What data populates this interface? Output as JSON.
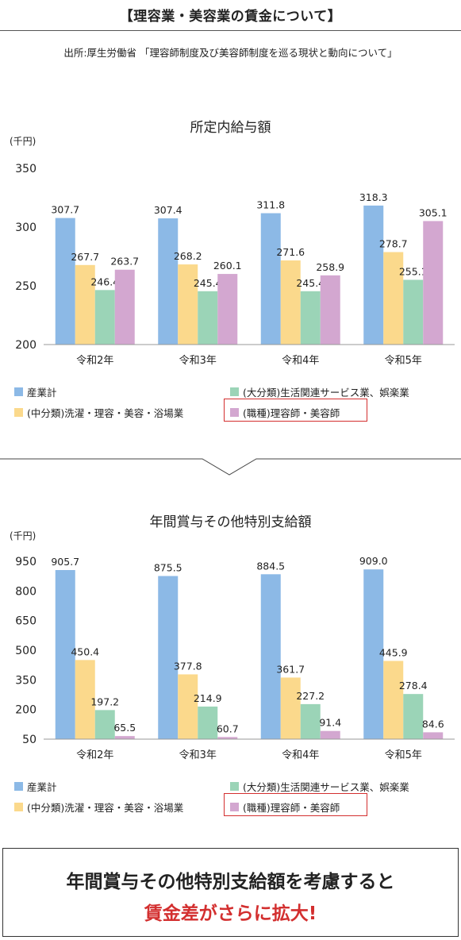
{
  "header": {
    "title": "【理容業・美容業の賃金について】",
    "source": "出所:厚生労働省 「理容師制度及び美容師制度を巡る現状と動向について」"
  },
  "colors": {
    "industry_total": "#8cb9e6",
    "laundry_barber": "#fbd98c",
    "lifestyle_services": "#9bd4b7",
    "barber_beautician": "#d3a7d0",
    "highlight": "#d32f2f"
  },
  "legend": {
    "items": [
      {
        "key": "industry_total",
        "label": "産業計"
      },
      {
        "key": "lifestyle_services",
        "label": "(大分類)生活関連サービス業、娯楽業"
      },
      {
        "key": "laundry_barber",
        "label": "(中分類)洗濯・理容・美容・浴場業"
      },
      {
        "key": "barber_beautician",
        "label": "(職種)理容師・美容師"
      }
    ]
  },
  "chart_data": [
    {
      "type": "bar",
      "title": "所定内給与額",
      "unit": "(千円)",
      "categories": [
        "令和2年",
        "令和3年",
        "令和4年",
        "令和5年"
      ],
      "ylim": [
        200,
        350
      ],
      "yticks": [
        200,
        250,
        300,
        350
      ],
      "series": [
        {
          "key": "industry_total",
          "name": "産業計",
          "values": [
            307.7,
            307.4,
            311.8,
            318.3
          ]
        },
        {
          "key": "laundry_barber",
          "name": "(中分類)洗濯・理容・美容・浴場業",
          "values": [
            267.7,
            268.2,
            271.6,
            278.7
          ]
        },
        {
          "key": "lifestyle_services",
          "name": "(大分類)生活関連サービス業、娯楽業",
          "values": [
            246.4,
            245.4,
            245.4,
            255.1
          ]
        },
        {
          "key": "barber_beautician",
          "name": "(職種)理容師・美容師",
          "values": [
            263.7,
            260.1,
            258.9,
            305.1
          ]
        }
      ],
      "grid": false,
      "legend_position": "bottom"
    },
    {
      "type": "bar",
      "title": "年間賞与その他特別支給額",
      "unit": "(千円)",
      "categories": [
        "令和2年",
        "令和3年",
        "令和4年",
        "令和5年"
      ],
      "ylim": [
        50,
        950
      ],
      "yticks": [
        50,
        200,
        350,
        500,
        650,
        800,
        950
      ],
      "series": [
        {
          "key": "industry_total",
          "name": "産業計",
          "values": [
            905.7,
            875.5,
            884.5,
            909.0
          ]
        },
        {
          "key": "laundry_barber",
          "name": "(中分類)洗濯・理容・美容・浴場業",
          "values": [
            450.4,
            377.8,
            361.7,
            445.9
          ]
        },
        {
          "key": "lifestyle_services",
          "name": "(大分類)生活関連サービス業、娯楽業",
          "values": [
            197.2,
            214.9,
            227.2,
            278.4
          ]
        },
        {
          "key": "barber_beautician",
          "name": "(職種)理容師・美容師",
          "values": [
            65.5,
            60.7,
            91.4,
            84.6
          ]
        }
      ],
      "grid": false,
      "legend_position": "bottom"
    }
  ],
  "conclusion": {
    "line1": "年間賞与その他特別支給額を考慮すると",
    "line2": "賃金差がさらに拡大!"
  }
}
